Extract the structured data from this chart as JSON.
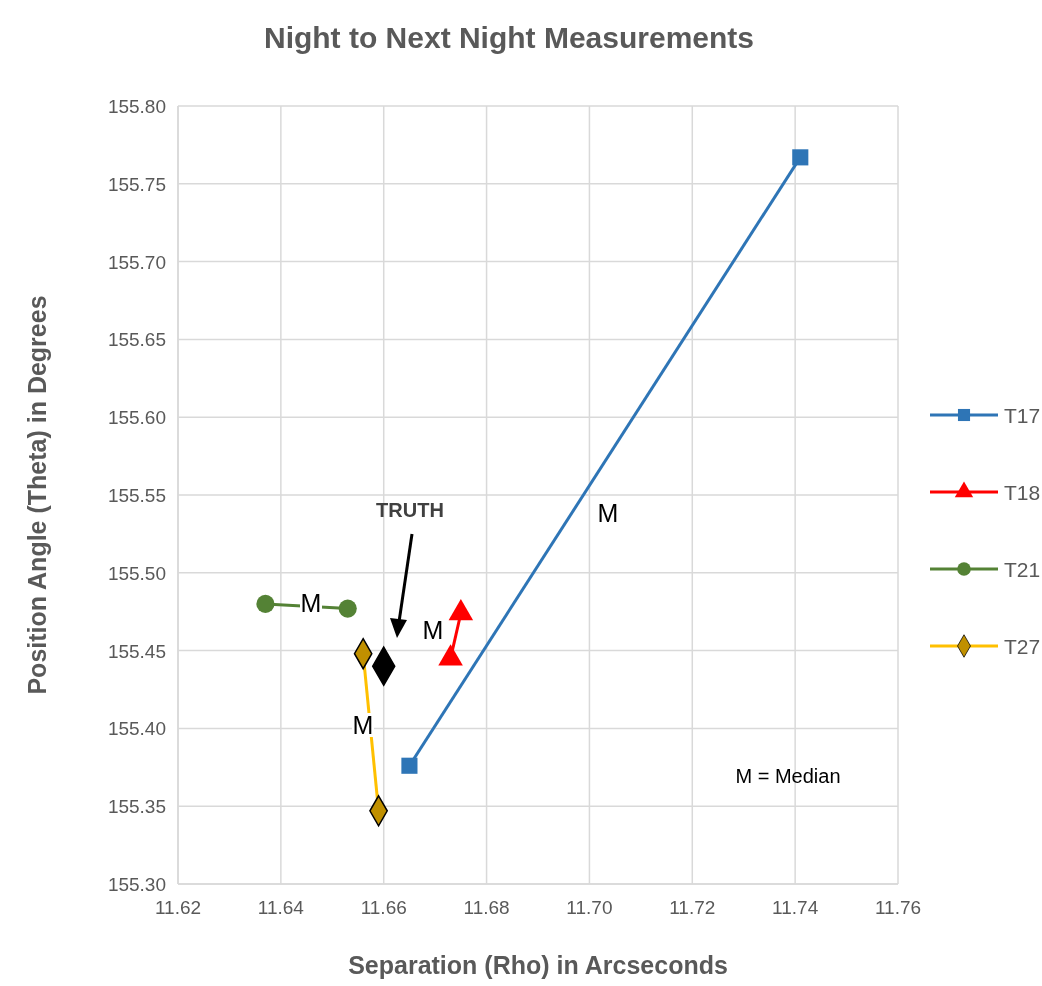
{
  "chart_data": {
    "type": "line",
    "title": "Night to Next Night Measurements",
    "xlabel": "Separation (Rho) in Arcseconds",
    "ylabel": "Position Angle (Theta) in Degrees",
    "xlim": [
      11.62,
      11.76
    ],
    "xticks": [
      {
        "value": 11.62,
        "label": "11.62"
      },
      {
        "value": 11.64,
        "label": "11.64"
      },
      {
        "value": 11.66,
        "label": "11.66"
      },
      {
        "value": 11.68,
        "label": "11.68"
      },
      {
        "value": 11.7,
        "label": "11.70"
      },
      {
        "value": 11.72,
        "label": "11.72"
      },
      {
        "value": 11.74,
        "label": "11.74"
      },
      {
        "value": 11.76,
        "label": "11.76"
      }
    ],
    "ylim": [
      155.3,
      155.8
    ],
    "yticks": [
      {
        "value": 155.3,
        "label": "155.30"
      },
      {
        "value": 155.35,
        "label": "155.35"
      },
      {
        "value": 155.4,
        "label": "155.40"
      },
      {
        "value": 155.45,
        "label": "155.45"
      },
      {
        "value": 155.5,
        "label": "155.50"
      },
      {
        "value": 155.55,
        "label": "155.55"
      },
      {
        "value": 155.6,
        "label": "155.60"
      },
      {
        "value": 155.65,
        "label": "155.65"
      },
      {
        "value": 155.7,
        "label": "155.70"
      },
      {
        "value": 155.75,
        "label": "155.75"
      },
      {
        "value": 155.8,
        "label": "155.80"
      }
    ],
    "grid": true,
    "legend": "right",
    "line_style": "solid",
    "series": [
      {
        "name": "T17",
        "color": "#2e75b6",
        "marker": "square",
        "x": [
          11.665,
          11.741
        ],
        "values": [
          155.376,
          155.767
        ]
      },
      {
        "name": "T18",
        "color": "#ff0000",
        "marker": "triangle",
        "x": [
          11.673,
          11.675
        ],
        "values": [
          155.445,
          155.474
        ]
      },
      {
        "name": "T21",
        "color": "#548235",
        "marker": "circle",
        "x": [
          11.637,
          11.653
        ],
        "values": [
          155.48,
          155.477
        ]
      },
      {
        "name": "T27",
        "color": "#ffc000",
        "marker": "diamond",
        "x": [
          11.656,
          11.659
        ],
        "values": [
          155.448,
          155.347
        ]
      },
      {
        "type": "scatter",
        "color": "#000000",
        "marker": "diamond",
        "x": [
          11.66
        ],
        "values": [
          155.44
        ]
      }
    ],
    "annotations": [
      "M",
      "M",
      "M",
      "M",
      "TRUTH",
      "M = Median"
    ]
  }
}
